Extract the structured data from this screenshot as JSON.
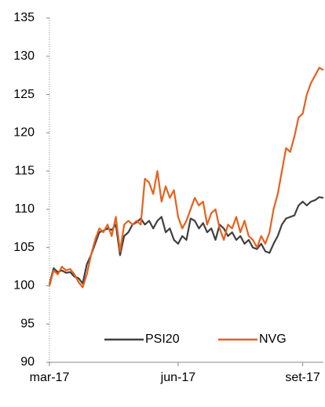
{
  "chart_data": {
    "type": "line",
    "categories": [
      "mar-17",
      null,
      null,
      null,
      null,
      null,
      null,
      null,
      null,
      null,
      null,
      null,
      null,
      null,
      null,
      null,
      null,
      null,
      null,
      null,
      null,
      null,
      null,
      null,
      null,
      null,
      null,
      null,
      null,
      null,
      null,
      "jun-17",
      null,
      null,
      null,
      null,
      null,
      null,
      null,
      null,
      null,
      null,
      null,
      null,
      null,
      null,
      null,
      null,
      null,
      null,
      null,
      null,
      null,
      null,
      null,
      null,
      null,
      null,
      null,
      null,
      null,
      "set-17",
      null,
      null,
      null,
      null,
      null
    ],
    "series": [
      {
        "name": "PSI20",
        "color": "#404040",
        "values": [
          100.2,
          102.3,
          101.8,
          102.0,
          101.7,
          101.8,
          101.2,
          101.0,
          100.3,
          102.8,
          104.0,
          105.5,
          107.0,
          107.2,
          107.5,
          107.3,
          108.0,
          104.0,
          106.5,
          107.0,
          108.0,
          108.3,
          108.8,
          108.0,
          108.5,
          107.5,
          108.5,
          109.0,
          107.0,
          107.5,
          106.0,
          105.5,
          106.5,
          106.0,
          108.8,
          108.5,
          107.5,
          108.2,
          107.0,
          107.5,
          106.0,
          108.0,
          107.5,
          106.5,
          107.0,
          106.0,
          106.5,
          105.5,
          106.0,
          105.0,
          104.8,
          105.5,
          104.5,
          104.3,
          105.5,
          106.5,
          108.0,
          108.8,
          109.0,
          109.2,
          110.5,
          111.0,
          110.5,
          111.0,
          111.2,
          111.6,
          111.5
        ]
      },
      {
        "name": "NVG",
        "color": "#e8601c",
        "values": [
          100.0,
          102.0,
          101.5,
          102.5,
          102.0,
          102.2,
          101.5,
          100.5,
          99.8,
          101.5,
          104.0,
          106.0,
          107.5,
          107.0,
          108.0,
          106.5,
          109.0,
          104.5,
          108.0,
          108.5,
          108.0,
          108.5,
          108.0,
          114.0,
          113.5,
          112.0,
          115.0,
          111.0,
          113.0,
          111.5,
          112.5,
          109.0,
          107.5,
          108.5,
          110.0,
          111.5,
          110.5,
          111.0,
          108.0,
          109.5,
          110.0,
          107.5,
          106.0,
          108.0,
          107.5,
          109.0,
          107.0,
          108.5,
          106.5,
          106.0,
          105.0,
          106.5,
          105.5,
          107.0,
          110.0,
          112.0,
          115.0,
          118.0,
          117.5,
          119.5,
          122.0,
          122.5,
          125.0,
          126.5,
          127.5,
          128.5,
          128.2
        ]
      }
    ],
    "ylim": [
      90,
      135
    ],
    "yticks": [
      90,
      95,
      100,
      105,
      110,
      115,
      120,
      125,
      130,
      135
    ],
    "legend": "bottom"
  }
}
